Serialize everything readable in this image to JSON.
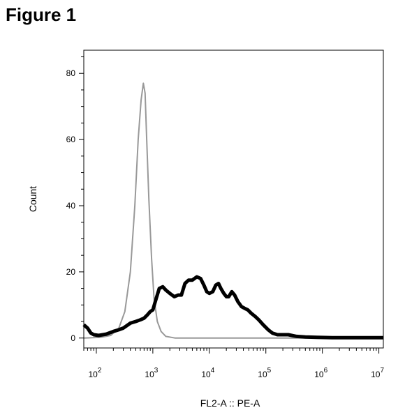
{
  "figure_title": "Figure 1",
  "chart_data": {
    "type": "line",
    "title": "",
    "xlabel": "FL2-A :: PE-A",
    "ylabel": "Count",
    "x_scale": "log",
    "xlim": [
      60,
      12000000
    ],
    "ylim": [
      -3,
      87
    ],
    "y_ticks": [
      0,
      20,
      40,
      60,
      80
    ],
    "x_ticks": [
      {
        "value": 100,
        "base": "10",
        "exp": "2"
      },
      {
        "value": 1000,
        "base": "10",
        "exp": "3"
      },
      {
        "value": 10000,
        "base": "10",
        "exp": "4"
      },
      {
        "value": 100000,
        "base": "10",
        "exp": "5"
      },
      {
        "value": 1000000,
        "base": "10",
        "exp": "6"
      },
      {
        "value": 10000000,
        "base": "10",
        "exp": "7"
      }
    ],
    "series": [
      {
        "color": "#999999",
        "stroke_width": 2,
        "x": [
          60,
          120,
          180,
          250,
          320,
          400,
          480,
          550,
          620,
          680,
          730,
          780,
          850,
          950,
          1050,
          1200,
          1400,
          1700,
          2500,
          4000,
          12000000
        ],
        "y": [
          0,
          0.2,
          0.8,
          3,
          8,
          20,
          40,
          60,
          72,
          77,
          74,
          60,
          42,
          24,
          12,
          5,
          2,
          0.5,
          0,
          0,
          0
        ]
      },
      {
        "color": "#000000",
        "stroke_width": 5,
        "x": [
          60,
          70,
          80,
          90,
          110,
          150,
          200,
          250,
          300,
          400,
          500,
          600,
          700,
          800,
          900,
          1000,
          1150,
          1300,
          1500,
          1700,
          2000,
          2400,
          2800,
          3200,
          3700,
          4300,
          5000,
          6000,
          7000,
          8000,
          9000,
          10000,
          11500,
          13000,
          14500,
          16000,
          18000,
          20000,
          22000,
          25000,
          28000,
          32000,
          37000,
          42000,
          48000,
          55000,
          65000,
          75000,
          90000,
          110000,
          130000,
          160000,
          200000,
          250000,
          350000,
          500000,
          800000,
          1500000,
          12000000
        ],
        "y": [
          4,
          3,
          1.5,
          1,
          0.8,
          1.2,
          2,
          2.5,
          3,
          4.5,
          5,
          5.5,
          6,
          7,
          8,
          8.5,
          12,
          15,
          15.5,
          14.5,
          13.5,
          12.5,
          13,
          13,
          16.5,
          17.5,
          17.5,
          18.5,
          18,
          16,
          14,
          13.5,
          14,
          16,
          16.5,
          15,
          13.5,
          12.5,
          12.5,
          14,
          13,
          11,
          9.5,
          9,
          8.5,
          7.5,
          6.5,
          5.5,
          4,
          2.5,
          1.5,
          1,
          1,
          1,
          0.5,
          0.3,
          0.2,
          0.1,
          0.1
        ]
      }
    ]
  }
}
